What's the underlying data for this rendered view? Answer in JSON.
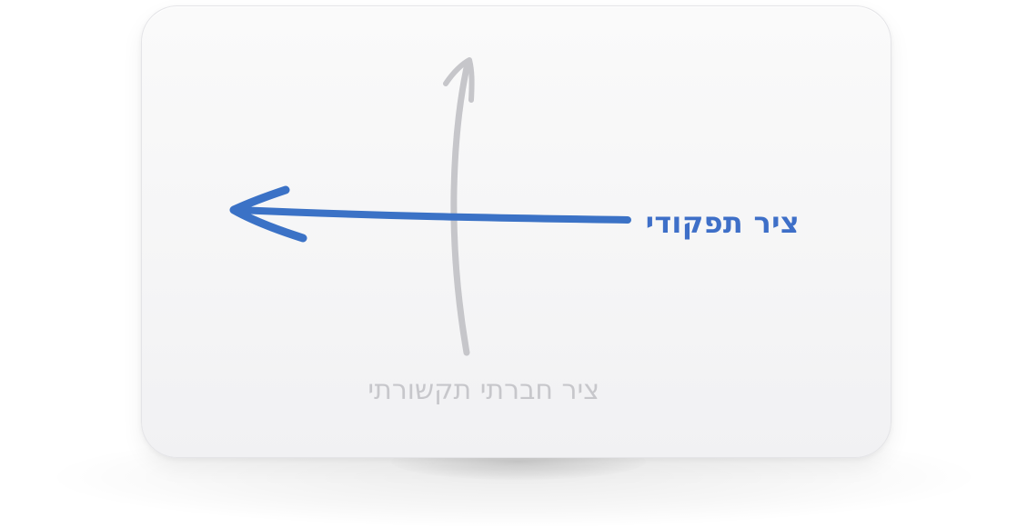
{
  "diagram": {
    "axes": [
      {
        "id": "functional",
        "label": "ציר תפקודי",
        "direction": "horizontal-left",
        "color": "#3e6fc8",
        "emphasis": "active"
      },
      {
        "id": "social",
        "label": "ציר חברתי תקשורתי",
        "direction": "vertical-up",
        "color": "#c7c7cb",
        "emphasis": "muted"
      }
    ]
  }
}
